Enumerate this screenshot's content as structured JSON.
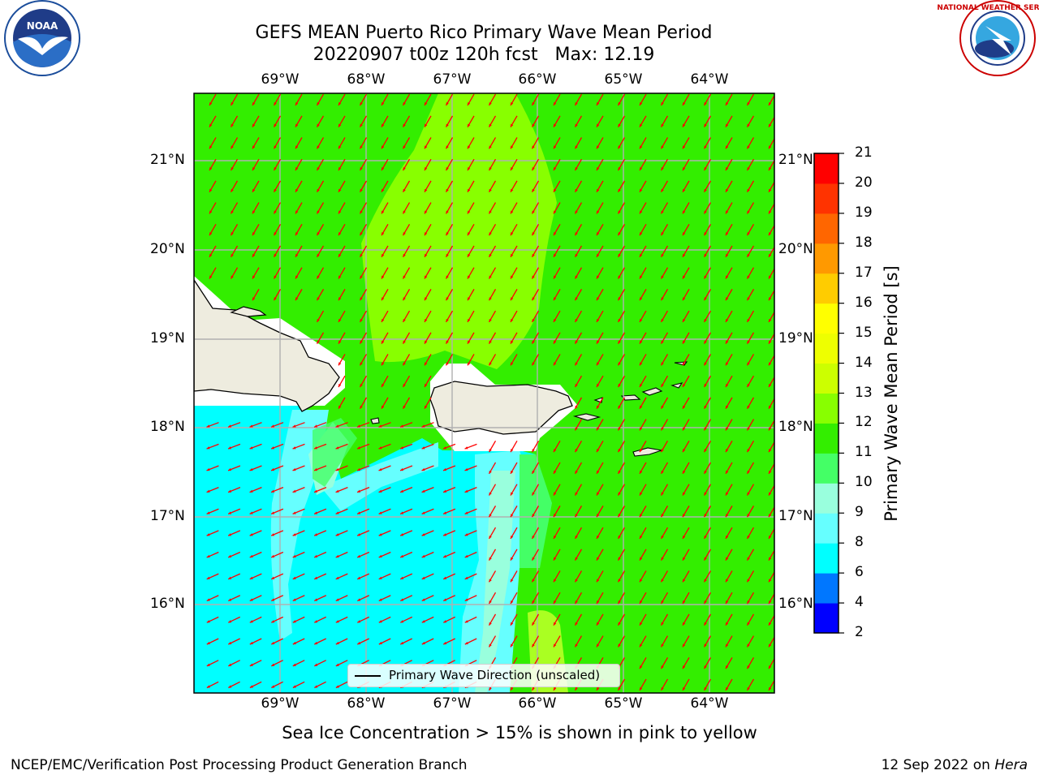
{
  "title_line1": "GEFS MEAN Puerto Rico Primary Wave Mean Period",
  "title_line2": "20220907 t00z 120h fcst   Max: 12.19",
  "lon_labels": [
    "69°W",
    "68°W",
    "67°W",
    "66°W",
    "65°W",
    "64°W"
  ],
  "lat_labels": [
    "21°N",
    "20°N",
    "19°N",
    "18°N",
    "17°N",
    "16°N"
  ],
  "colorbar": {
    "label": "Primary Wave Mean Period [s]",
    "ticks": [
      "2",
      "4",
      "6",
      "8",
      "9",
      "10",
      "11",
      "12",
      "13",
      "14",
      "15",
      "16",
      "17",
      "18",
      "19",
      "20",
      "21"
    ],
    "bands": [
      {
        "from": 2,
        "to": 4,
        "color": "#0000ff"
      },
      {
        "from": 4,
        "to": 6,
        "color": "#0077ff"
      },
      {
        "from": 6,
        "to": 8,
        "color": "#00ffff"
      },
      {
        "from": 8,
        "to": 9,
        "color": "#66ffff"
      },
      {
        "from": 9,
        "to": 10,
        "color": "#99ffdd"
      },
      {
        "from": 10,
        "to": 11,
        "color": "#44ff66"
      },
      {
        "from": 11,
        "to": 12,
        "color": "#33ee00"
      },
      {
        "from": 12,
        "to": 13,
        "color": "#88ff00"
      },
      {
        "from": 13,
        "to": 14,
        "color": "#ccff00"
      },
      {
        "from": 14,
        "to": 15,
        "color": "#eeff00"
      },
      {
        "from": 15,
        "to": 16,
        "color": "#ffff00"
      },
      {
        "from": 16,
        "to": 17,
        "color": "#ffcc00"
      },
      {
        "from": 17,
        "to": 18,
        "color": "#ff9900"
      },
      {
        "from": 18,
        "to": 19,
        "color": "#ff6600"
      },
      {
        "from": 19,
        "to": 20,
        "color": "#ff3300"
      },
      {
        "from": 20,
        "to": 21,
        "color": "#ff0000"
      }
    ]
  },
  "legend_label": "Primary Wave Direction (unscaled)",
  "note": "Sea Ice Concentration > 15% is shown in pink to yellow",
  "footer_left": "NCEP/EMC/Verification Post Processing Product Generation Branch",
  "footer_date": "12 Sep 2022 on ",
  "footer_machine": "Hera",
  "logos": {
    "left": "NOAA",
    "right": "NATIONAL WEATHER SERVICE"
  },
  "colors": {
    "land": "#eeecdf",
    "arrow": "#ff0000",
    "grid": "#b0b0b0"
  }
}
